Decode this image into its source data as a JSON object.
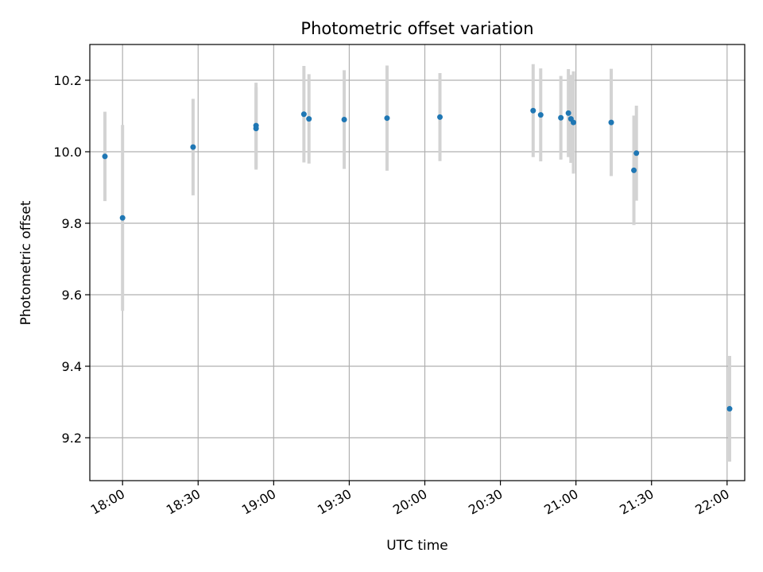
{
  "chart_data": {
    "type": "scatter",
    "title": "Photometric offset variation",
    "xlabel": "UTC time",
    "ylabel": "Photometric offset",
    "grid": true,
    "legend": "none",
    "xlim": [
      "17:47",
      "22:07"
    ],
    "ylim": [
      9.08,
      10.3
    ],
    "x_ticks": [
      "18:00",
      "18:30",
      "19:00",
      "19:30",
      "20:00",
      "20:30",
      "21:00",
      "21:30",
      "22:00"
    ],
    "y_ticks": [
      "9.2",
      "9.4",
      "9.6",
      "9.8",
      "10.0",
      "10.2"
    ],
    "colors": {
      "point": "#1f77b4",
      "error_bar": "#d3d3d3",
      "grid": "#b0b0b0"
    },
    "points": [
      {
        "x": "17:53",
        "y": 9.987,
        "err": 0.125
      },
      {
        "x": "18:00",
        "y": 9.815,
        "err": 0.26
      },
      {
        "x": "18:28",
        "y": 10.013,
        "err": 0.135
      },
      {
        "x": "18:53",
        "y": 10.073,
        "err": 0.12
      },
      {
        "x": "18:53",
        "y": 10.065,
        "err": 0.115
      },
      {
        "x": "19:12",
        "y": 10.105,
        "err": 0.135
      },
      {
        "x": "19:14",
        "y": 10.092,
        "err": 0.125
      },
      {
        "x": "19:28",
        "y": 10.09,
        "err": 0.138
      },
      {
        "x": "19:45",
        "y": 10.094,
        "err": 0.147
      },
      {
        "x": "20:06",
        "y": 10.097,
        "err": 0.123
      },
      {
        "x": "20:43",
        "y": 10.115,
        "err": 0.13
      },
      {
        "x": "20:46",
        "y": 10.103,
        "err": 0.13
      },
      {
        "x": "20:54",
        "y": 10.095,
        "err": 0.117
      },
      {
        "x": "20:57",
        "y": 10.108,
        "err": 0.123
      },
      {
        "x": "20:58",
        "y": 10.092,
        "err": 0.123
      },
      {
        "x": "20:59",
        "y": 10.082,
        "err": 0.143
      },
      {
        "x": "21:14",
        "y": 10.082,
        "err": 0.15
      },
      {
        "x": "21:23",
        "y": 9.948,
        "err": 0.153
      },
      {
        "x": "21:24",
        "y": 9.996,
        "err": 0.133
      },
      {
        "x": "22:01",
        "y": 9.281,
        "err": 0.148
      }
    ]
  }
}
